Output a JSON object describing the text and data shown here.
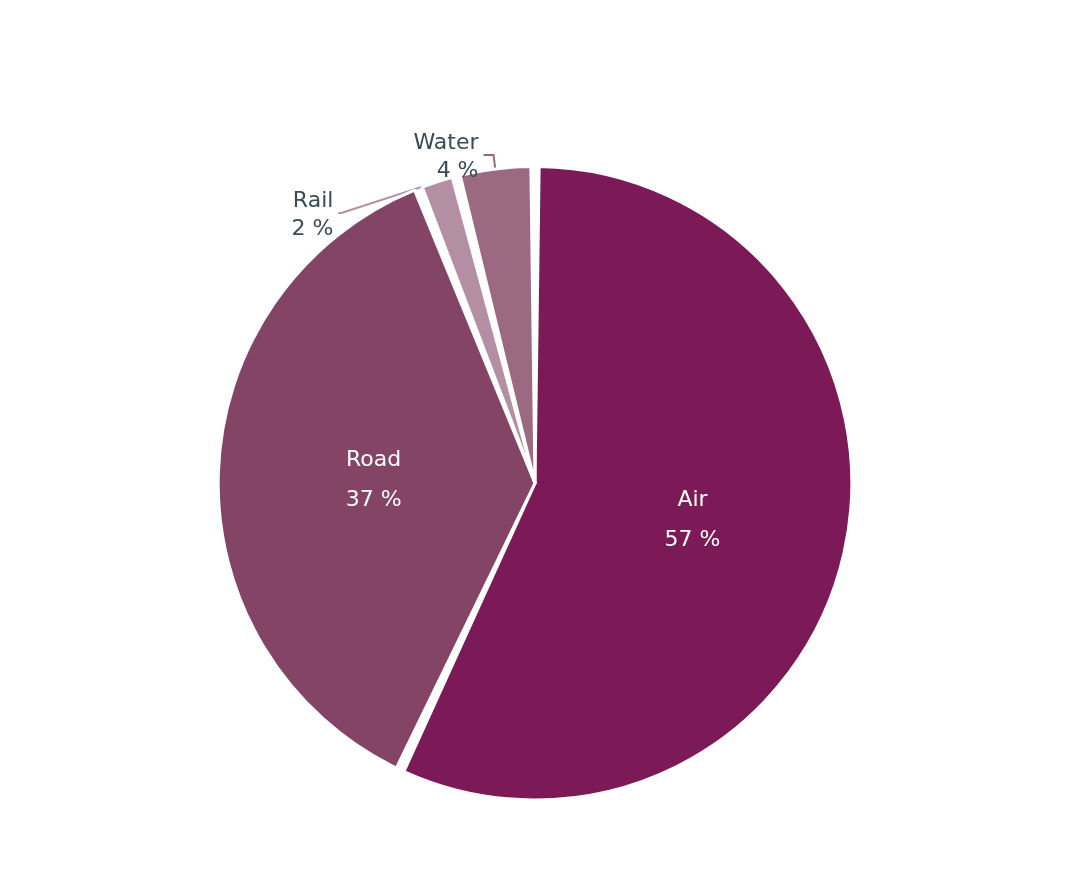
{
  "chart_data": {
    "type": "pie",
    "categories": [
      "Air",
      "Road",
      "Rail",
      "Water"
    ],
    "values": [
      57,
      37,
      2,
      4
    ],
    "colors": [
      "#7b1a57",
      "#844466",
      "#b48fa3",
      "#9c6a80"
    ],
    "value_labels": [
      "57 %",
      "37 %",
      "2 %",
      "4 %"
    ]
  }
}
